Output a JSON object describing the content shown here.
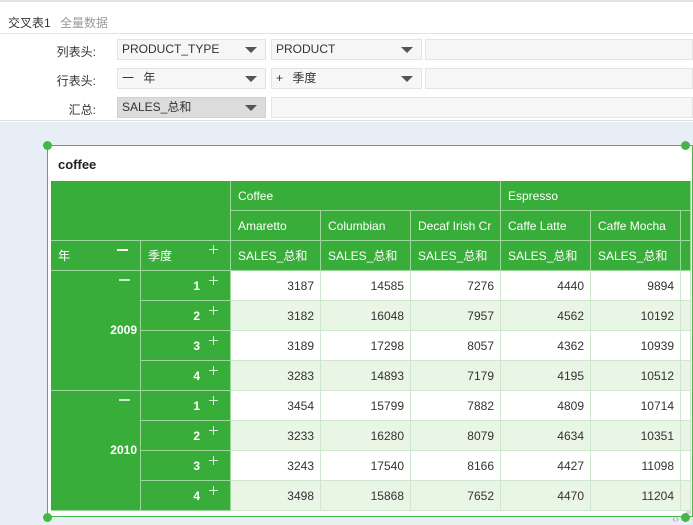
{
  "tabs": {
    "active": "交叉表1",
    "inactive": "全量数据"
  },
  "config": {
    "column_header_label": "列表头:",
    "row_header_label": "行表头:",
    "summary_label": "汇总:",
    "column_fields": [
      "PRODUCT_TYPE",
      "PRODUCT"
    ],
    "row_fields": [
      {
        "prefix": "一",
        "name": "年"
      },
      {
        "prefix": "+",
        "name": "季度"
      }
    ],
    "summary_field": "SALES_总和"
  },
  "widget": {
    "title": "coffee"
  },
  "table": {
    "row_dim_headers": {
      "year": "年",
      "quarter": "季度"
    },
    "product_types": [
      "Coffee",
      "Espresso"
    ],
    "products": [
      "Amaretto",
      "Columbian",
      "Decaf Irish Cr",
      "Caffe Latte",
      "Caffe Mocha"
    ],
    "measure": "SALES_总和",
    "years": [
      {
        "year": "2009",
        "rows": [
          {
            "q": "1",
            "values": [
              "3187",
              "14585",
              "7276",
              "4440",
              "9894"
            ]
          },
          {
            "q": "2",
            "values": [
              "3182",
              "16048",
              "7957",
              "4562",
              "10192"
            ]
          },
          {
            "q": "3",
            "values": [
              "3189",
              "17298",
              "8057",
              "4362",
              "10939"
            ]
          },
          {
            "q": "4",
            "values": [
              "3283",
              "14893",
              "7179",
              "4195",
              "10512"
            ]
          }
        ]
      },
      {
        "year": "2010",
        "rows": [
          {
            "q": "1",
            "values": [
              "3454",
              "15799",
              "7882",
              "4809",
              "10714"
            ]
          },
          {
            "q": "2",
            "values": [
              "3233",
              "16280",
              "8079",
              "4634",
              "10351"
            ]
          },
          {
            "q": "3",
            "values": [
              "3243",
              "17540",
              "8166",
              "4427",
              "11098"
            ]
          },
          {
            "q": "4",
            "values": [
              "3498",
              "15868",
              "7652",
              "4470",
              "11204"
            ]
          }
        ]
      }
    ]
  },
  "icons": {
    "collapse": "minus-icon",
    "expand": "plus-icon",
    "dropdown": "chevron-down-icon"
  },
  "colors": {
    "header_green": "#39ad39",
    "alt_row": "#e9f5e5",
    "selection": "#46b746"
  }
}
